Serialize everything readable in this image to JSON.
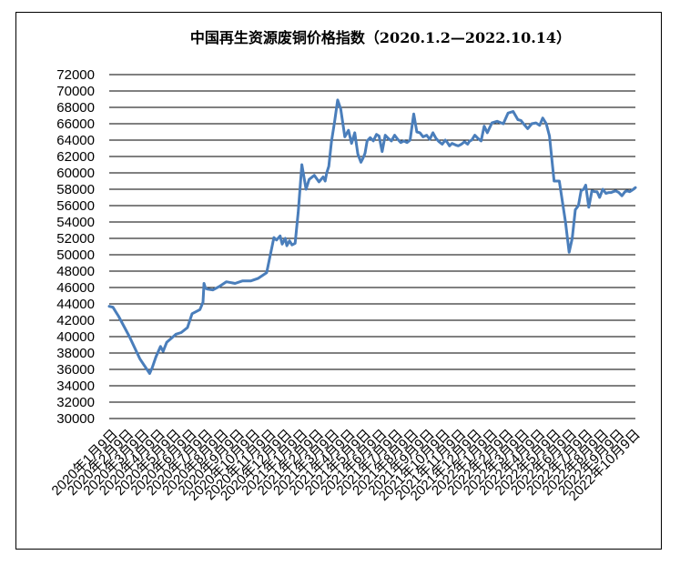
{
  "chart_data": {
    "type": "line",
    "title": "中国再生资源废铜价格指数（2020.1.2—2022.10.14）",
    "xlabel": "",
    "ylabel": "",
    "ylim": [
      30000,
      72000
    ],
    "y_step": 2000,
    "grid": true,
    "legend": "none",
    "line_color": "#4a7ebb",
    "x_tick_labels": [
      "2020年1月9日",
      "2020年2月9日",
      "2020年3月9日",
      "2020年4月9日",
      "2020年5月9日",
      "2020年6月9日",
      "2020年7月9日",
      "2020年8月9日",
      "2020年9月9日",
      "2020年10月9日",
      "2020年11月9日",
      "2020年12月9日",
      "2021年1月9日",
      "2021年2月9日",
      "2021年3月9日",
      "2021年4月9日",
      "2021年5月9日",
      "2021年6月9日",
      "2021年7月9日",
      "2021年8月9日",
      "2021年9月9日",
      "2021年10月9日",
      "2021年11月9日",
      "2021年12月9日",
      "2022年1月9日",
      "2022年2月9日",
      "2022年3月9日",
      "2022年4月9日",
      "2022年5月9日",
      "2022年6月9日",
      "2022年7月9日",
      "2022年8月9日",
      "2022年9月9日",
      "2022年10月9日"
    ],
    "series": [
      {
        "x": [
          "2020-01-02",
          "2020-01-09",
          "2020-01-20",
          "2020-02-10",
          "2020-03-01",
          "2020-03-20",
          "2020-03-25",
          "2020-04-01",
          "2020-04-10",
          "2020-04-15",
          "2020-04-22",
          "2020-05-01",
          "2020-05-10",
          "2020-05-20",
          "2020-06-01",
          "2020-06-10",
          "2020-06-25",
          "2020-07-01",
          "2020-07-03",
          "2020-07-06",
          "2020-07-10",
          "2020-07-20",
          "2020-08-01",
          "2020-08-15",
          "2020-09-01",
          "2020-09-15",
          "2020-10-01",
          "2020-10-15",
          "2020-11-01",
          "2020-11-15",
          "2020-11-20",
          "2020-11-27",
          "2020-12-01",
          "2020-12-07",
          "2020-12-10",
          "2020-12-15",
          "2020-12-20",
          "2020-12-26",
          "2021-01-01",
          "2021-01-08",
          "2021-01-16",
          "2021-01-22",
          "2021-02-01",
          "2021-02-10",
          "2021-02-18",
          "2021-02-22",
          "2021-02-25",
          "2021-03-01",
          "2021-03-06",
          "2021-03-12",
          "2021-03-18",
          "2021-03-24",
          "2021-04-01",
          "2021-04-08",
          "2021-04-14",
          "2021-04-20",
          "2021-04-26",
          "2021-05-02",
          "2021-05-06",
          "2021-05-10",
          "2021-05-14",
          "2021-05-20",
          "2021-05-26",
          "2021-06-01",
          "2021-06-06",
          "2021-06-12",
          "2021-06-18",
          "2021-06-24",
          "2021-06-30",
          "2021-07-06",
          "2021-07-12",
          "2021-07-18",
          "2021-07-24",
          "2021-07-30",
          "2021-08-05",
          "2021-08-12",
          "2021-08-18",
          "2021-08-24",
          "2021-08-30",
          "2021-09-06",
          "2021-09-12",
          "2021-09-18",
          "2021-09-24",
          "2021-09-30",
          "2021-10-06",
          "2021-10-12",
          "2021-10-16",
          "2021-10-20",
          "2021-10-25",
          "2021-11-01",
          "2021-11-06",
          "2021-11-12",
          "2021-11-18",
          "2021-11-24",
          "2021-11-28",
          "2021-12-02",
          "2021-12-08",
          "2021-12-14",
          "2021-12-20",
          "2021-12-26",
          "2022-01-01",
          "2022-01-10",
          "2022-01-20",
          "2022-02-01",
          "2022-02-10",
          "2022-02-20",
          "2022-03-01",
          "2022-03-07",
          "2022-03-12",
          "2022-03-20",
          "2022-03-28",
          "2022-04-05",
          "2022-04-12",
          "2022-04-18",
          "2022-04-25",
          "2022-05-01",
          "2022-05-10",
          "2022-05-20",
          "2022-06-01",
          "2022-06-08",
          "2022-06-14",
          "2022-06-20",
          "2022-06-26",
          "2022-07-01",
          "2022-07-06",
          "2022-07-10",
          "2022-07-16",
          "2022-07-22",
          "2022-07-28",
          "2022-08-01",
          "2022-08-06",
          "2022-08-12",
          "2022-08-18",
          "2022-08-24",
          "2022-08-28",
          "2022-09-01",
          "2022-09-06",
          "2022-09-12",
          "2022-09-18",
          "2022-09-24",
          "2022-09-28",
          "2022-10-03",
          "2022-10-08",
          "2022-10-14"
        ],
        "values": [
          43700,
          43600,
          42500,
          40000,
          37300,
          35500,
          36200,
          37500,
          38800,
          38200,
          39300,
          39800,
          40300,
          40500,
          41100,
          42800,
          43300,
          44200,
          46500,
          45900,
          45800,
          45700,
          46100,
          46700,
          46500,
          46800,
          46800,
          47100,
          47800,
          52100,
          51800,
          52300,
          51300,
          52000,
          51100,
          51700,
          51200,
          51400,
          55200,
          61000,
          58000,
          59200,
          59700,
          58900,
          59500,
          59000,
          60000,
          60800,
          63800,
          66200,
          68900,
          67800,
          64400,
          65200,
          63600,
          64900,
          62300,
          61300,
          61800,
          62400,
          63900,
          64300,
          63900,
          64700,
          64500,
          62600,
          64600,
          64200,
          63900,
          64600,
          64100,
          63700,
          63900,
          63700,
          64000,
          67200,
          65000,
          64900,
          64400,
          64600,
          64100,
          64900,
          64200,
          63800,
          63500,
          64000,
          63700,
          63300,
          63600,
          63400,
          63300,
          63500,
          63800,
          63500,
          63900,
          64000,
          64600,
          64200,
          63900,
          65700,
          64900,
          66100,
          66300,
          66000,
          67300,
          67500,
          66500,
          66400,
          66000,
          65400,
          66000,
          66100,
          65800,
          66700,
          66000,
          64500,
          59000,
          59000,
          54000,
          50300,
          52000,
          55500,
          56000,
          57800,
          58000,
          58500,
          55800,
          57800,
          57700,
          57700,
          57000,
          58000,
          57500,
          57600,
          57600,
          57700,
          57800,
          57600,
          57200,
          57700,
          57800,
          57700,
          57900,
          58200
        ]
      }
    ]
  }
}
